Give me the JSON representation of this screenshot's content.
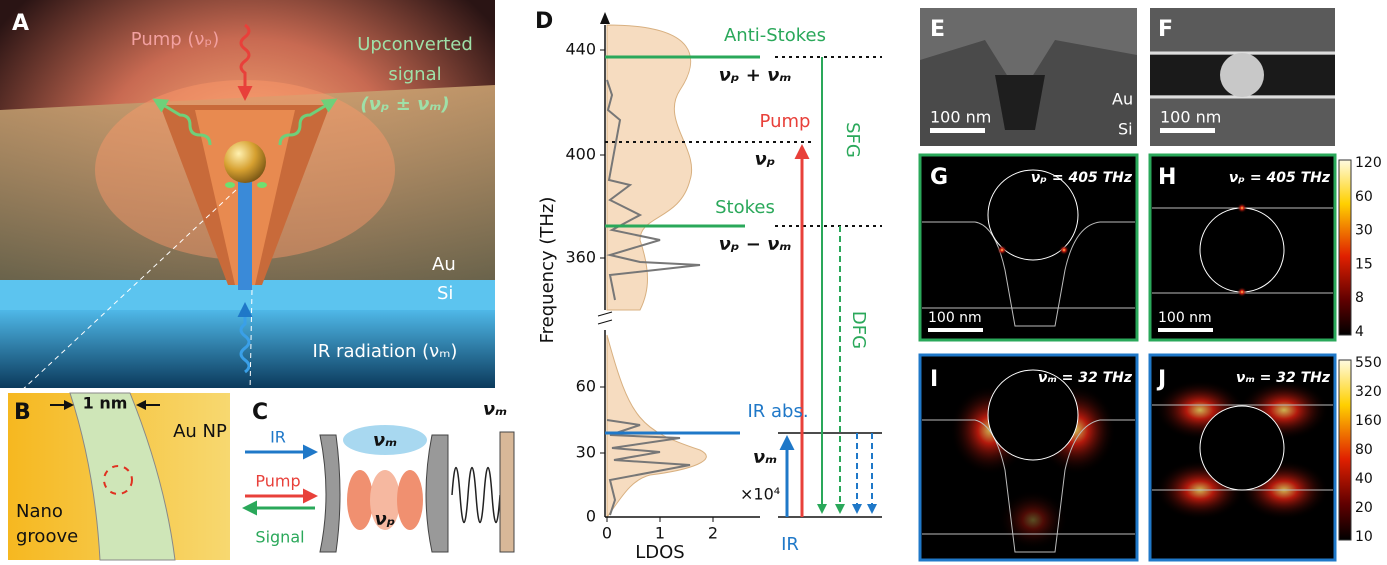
{
  "panels": {
    "a": {
      "label": "A",
      "pump": "Pump (νₚ)",
      "signal": [
        "Upconverted",
        "signal",
        "(νₚ ± νₘ)"
      ],
      "au": "Au",
      "si": "Si",
      "ir": "IR radiation (νₘ)"
    },
    "b": {
      "label": "B",
      "gap": "1 nm",
      "au_np": "Au NP",
      "groove": [
        "Nano",
        "groove"
      ]
    },
    "c": {
      "label": "C",
      "ir": "IR",
      "pump": "Pump",
      "signal": "Signal",
      "vib": "νₘ",
      "mode": "νₘ",
      "cavity": "νₚ"
    },
    "d": {
      "label": "D",
      "y_label": "Frequency (THz)",
      "x_label": "LDOS",
      "upper_ticks": [
        "440",
        "400",
        "360"
      ],
      "lower_ticks": [
        "60",
        "30",
        "0"
      ],
      "x_ticks": [
        "0",
        "1",
        "2"
      ],
      "scale": "×10⁴",
      "anti_stokes": "Anti-Stokes",
      "anti_stokes_freq": "νₚ + νₘ",
      "pump": "Pump",
      "pump_freq": "νₚ",
      "stokes": "Stokes",
      "stokes_freq": "νₚ − νₘ",
      "ir_abs": "IR abs.",
      "ir_freq": "νₘ",
      "sfg": "SFG",
      "dfg": "DFG",
      "ir": "IR"
    },
    "e": {
      "label": "E",
      "au": "Au",
      "si": "Si",
      "scale": "100 nm"
    },
    "f": {
      "label": "F",
      "scale": "100 nm"
    },
    "g": {
      "label": "G",
      "freq": "νₚ = 405 THz",
      "scale": "100 nm"
    },
    "h": {
      "label": "H",
      "freq": "νₚ = 405 THz",
      "scale": "100 nm"
    },
    "i": {
      "label": "I",
      "freq": "νₘ = 32 THz"
    },
    "j": {
      "label": "J",
      "freq": "νₘ = 32 THz"
    },
    "colorbar_top": {
      "ticks": [
        "120",
        "60",
        "30",
        "15",
        "8",
        "4"
      ]
    },
    "colorbar_bottom": {
      "ticks": [
        "550",
        "320",
        "160",
        "80",
        "40",
        "20",
        "10"
      ]
    }
  }
}
